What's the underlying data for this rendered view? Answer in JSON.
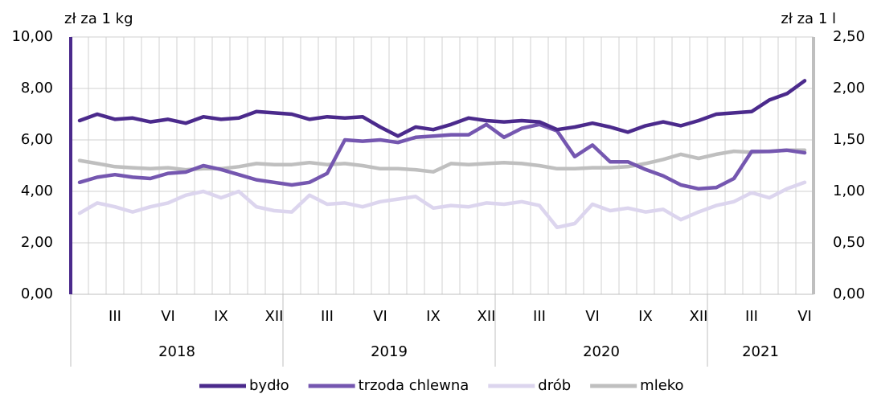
{
  "chart_data": {
    "type": "line",
    "y_label": "zł za 1 kg",
    "y2_label": "zł za 1 l",
    "categories": [
      null,
      null,
      "III",
      null,
      null,
      "VI",
      null,
      null,
      "IX",
      null,
      null,
      "XII",
      null,
      null,
      "III",
      null,
      null,
      "VI",
      null,
      null,
      "IX",
      null,
      null,
      "XII",
      null,
      null,
      "III",
      null,
      null,
      "VI",
      null,
      null,
      "IX",
      null,
      null,
      "XII",
      null,
      null,
      "III",
      null,
      null,
      "VI"
    ],
    "groups": [
      "2018",
      "2019",
      "2020",
      "2021"
    ],
    "series": [
      {
        "name": "bydło",
        "color": "#4b2a8c",
        "values": [
          6.75,
          7.0,
          6.8,
          6.85,
          6.7,
          6.8,
          6.65,
          6.9,
          6.8,
          6.85,
          7.1,
          7.05,
          7.0,
          6.8,
          6.9,
          6.85,
          6.9,
          6.5,
          6.15,
          6.5,
          6.4,
          6.6,
          6.85,
          6.75,
          6.7,
          6.75,
          6.7,
          6.4,
          6.5,
          6.65,
          6.5,
          6.3,
          6.55,
          6.7,
          6.55,
          6.75,
          7.0,
          7.05,
          7.1,
          7.55,
          7.8,
          8.3
        ]
      },
      {
        "name": "trzoda chlewna",
        "color": "#7557b0",
        "values": [
          4.35,
          4.55,
          4.65,
          4.55,
          4.5,
          4.7,
          4.75,
          5.0,
          4.85,
          4.65,
          4.45,
          4.35,
          4.25,
          4.35,
          4.7,
          6.0,
          5.95,
          6.0,
          5.9,
          6.1,
          6.15,
          6.2,
          6.2,
          6.6,
          6.1,
          6.45,
          6.6,
          6.35,
          5.35,
          5.8,
          5.15,
          5.15,
          4.85,
          4.6,
          4.25,
          4.1,
          4.15,
          4.5,
          5.55,
          5.55,
          5.6,
          5.5
        ]
      },
      {
        "name": "drób",
        "color": "#dcd5ee",
        "values": [
          3.15,
          3.55,
          3.4,
          3.2,
          3.4,
          3.55,
          3.85,
          4.0,
          3.75,
          4.0,
          3.4,
          3.25,
          3.2,
          3.85,
          3.5,
          3.55,
          3.4,
          3.6,
          3.7,
          3.8,
          3.35,
          3.45,
          3.4,
          3.55,
          3.5,
          3.6,
          3.45,
          2.6,
          2.75,
          3.5,
          3.25,
          3.35,
          3.2,
          3.3,
          2.9,
          3.2,
          3.45,
          3.6,
          3.95,
          3.75,
          4.1,
          4.35
        ]
      },
      {
        "name": "mleko",
        "color": "#bfbfbf",
        "axis": "y2",
        "values": [
          1.3,
          1.27,
          1.24,
          1.23,
          1.22,
          1.23,
          1.21,
          1.22,
          1.22,
          1.24,
          1.27,
          1.26,
          1.26,
          1.28,
          1.26,
          1.27,
          1.25,
          1.22,
          1.22,
          1.21,
          1.19,
          1.27,
          1.26,
          1.27,
          1.28,
          1.27,
          1.25,
          1.22,
          1.22,
          1.23,
          1.23,
          1.24,
          1.27,
          1.31,
          1.36,
          1.32,
          1.36,
          1.39,
          1.38,
          1.39,
          1.4,
          1.4
        ]
      }
    ],
    "ylim": [
      0,
      10
    ],
    "yticks": [
      {
        "value": 0,
        "label": "0,00"
      },
      {
        "value": 2,
        "label": "2,00"
      },
      {
        "value": 4,
        "label": "4,00"
      },
      {
        "value": 6,
        "label": "6,00"
      },
      {
        "value": 8,
        "label": "8,00"
      },
      {
        "value": 10,
        "label": "10,00"
      }
    ],
    "y2lim": [
      0,
      2.5
    ],
    "y2ticks": [
      {
        "value": 0,
        "label": "0,00"
      },
      {
        "value": 0.5,
        "label": "0,50"
      },
      {
        "value": 1,
        "label": "1,00"
      },
      {
        "value": 1.5,
        "label": "1,50"
      },
      {
        "value": 2,
        "label": "2,00"
      },
      {
        "value": 2.5,
        "label": "2,50"
      }
    ],
    "grid": true,
    "legend": "bottom"
  }
}
